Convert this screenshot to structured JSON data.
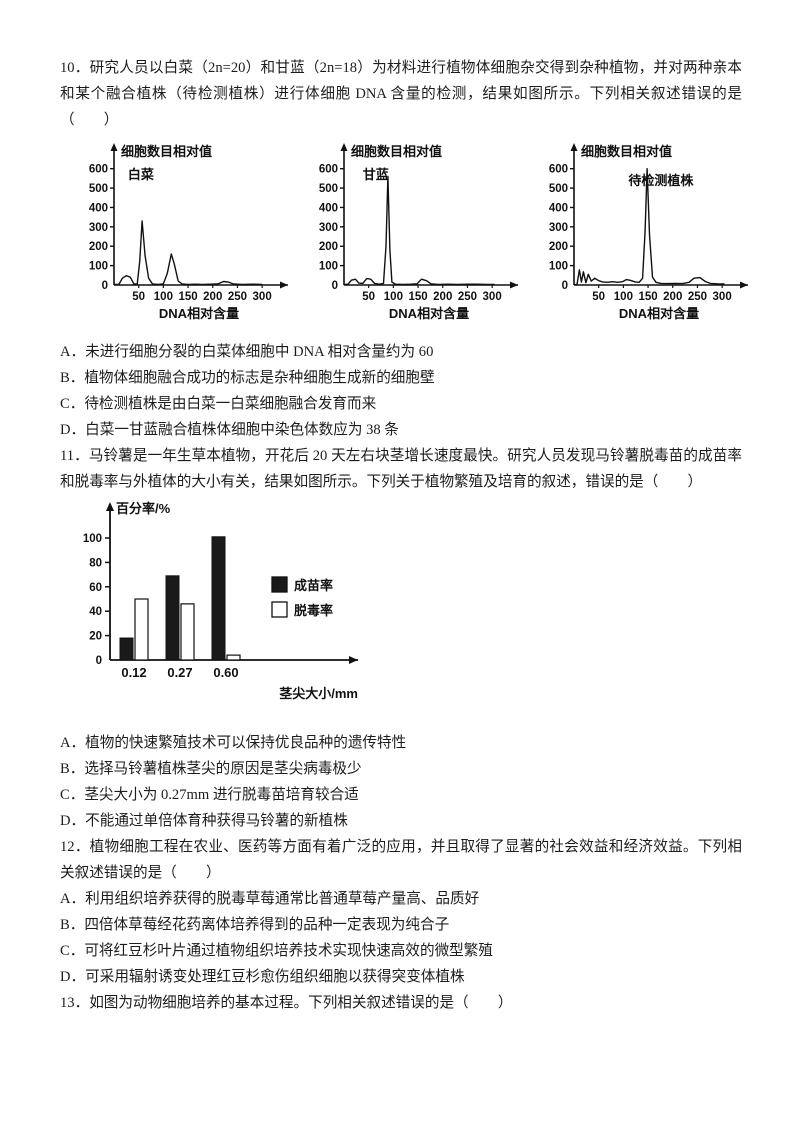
{
  "questions": [
    {
      "number": "10．",
      "stem": "研究人员以白菜（2n=20）和甘蓝（2n=18）为材料进行植物体细胞杂交得到杂种植物，并对两种亲本和某个融合植株（待检测植株）进行体细胞 DNA 含量的检测，结果如图所示。下列相关叙述错误的是（　　）",
      "options": [
        "A．未进行细胞分裂的白菜体细胞中 DNA 相对含量约为 60",
        "B．植物体细胞融合成功的标志是杂种细胞生成新的细胞壁",
        "C．待检测植株是由白菜一白菜细胞融合发育而来",
        "D．白菜一甘蓝融合植株体细胞中染色体数应为 38 条"
      ]
    },
    {
      "number": "11．",
      "stem": "马铃薯是一年生草本植物，开花后 20 天左右块茎增长速度最快。研究人员发现马铃薯脱毒苗的成苗率和脱毒率与外植体的大小有关，结果如图所示。下列关于植物繁殖及培育的叙述，错误的是（　　）",
      "options": [
        "A．植物的快速繁殖技术可以保持优良品种的遗传特性",
        "B．选择马铃薯植株茎尖的原因是茎尖病毒极少",
        "C．茎尖大小为 0.27mm 进行脱毒苗培育较合适",
        "D．不能通过单倍体育种获得马铃薯的新植株"
      ]
    },
    {
      "number": "12．",
      "stem": "植物细胞工程在农业、医药等方面有着广泛的应用，并且取得了显著的社会效益和经济效益。下列相关叙述错误的是（　　）",
      "options": [
        "A．利用组织培养获得的脱毒草莓通常比普通草莓产量高、品质好",
        "B．四倍体草莓经花药离体培养得到的品种一定表现为纯合子",
        "C．可将红豆杉叶片通过植物组织培养技术实现快速高效的微型繁殖",
        "D．可采用辐射诱变处理红豆杉愈伤组织细胞以获得突变体植株"
      ]
    },
    {
      "number": "13．",
      "stem": "如图为动物细胞培养的基本过程。下列相关叙述错误的是（　　）"
    }
  ],
  "chart_data": [
    {
      "type": "line",
      "title": "白菜",
      "ylabel": "细胞数目相对值",
      "xlabel": "DNA相对含量",
      "xlim": [
        0,
        320
      ],
      "ylim": [
        0,
        650
      ],
      "xticks": [
        50,
        100,
        150,
        200,
        250,
        300
      ],
      "yticks": [
        100,
        200,
        300,
        400,
        500,
        600
      ],
      "origin_label": "0",
      "grid": false,
      "peaks_note": "main peak at DNA~60 height ~330, second peak at ~118 height ~160, small bump ~25 height ~45, tiny bump ~225",
      "label_x": 28,
      "label_y": 40,
      "points": [
        [
          0,
          3
        ],
        [
          10,
          3
        ],
        [
          17,
          35
        ],
        [
          25,
          48
        ],
        [
          33,
          40
        ],
        [
          40,
          6
        ],
        [
          47,
          4
        ],
        [
          52,
          120
        ],
        [
          57,
          330
        ],
        [
          63,
          150
        ],
        [
          70,
          35
        ],
        [
          78,
          5
        ],
        [
          90,
          3
        ],
        [
          100,
          6
        ],
        [
          108,
          60
        ],
        [
          116,
          160
        ],
        [
          122,
          110
        ],
        [
          130,
          20
        ],
        [
          138,
          5
        ],
        [
          150,
          3
        ],
        [
          165,
          4
        ],
        [
          180,
          3
        ],
        [
          195,
          4
        ],
        [
          210,
          5
        ],
        [
          222,
          18
        ],
        [
          232,
          15
        ],
        [
          242,
          5
        ],
        [
          260,
          3
        ],
        [
          280,
          4
        ],
        [
          300,
          3
        ]
      ]
    },
    {
      "type": "line",
      "title": "甘蓝",
      "ylabel": "细胞数目相对值",
      "xlabel": "DNA相对含量",
      "xlim": [
        0,
        320
      ],
      "ylim": [
        0,
        650
      ],
      "xticks": [
        50,
        100,
        150,
        200,
        250,
        300
      ],
      "yticks": [
        100,
        200,
        300,
        400,
        500,
        600
      ],
      "origin_label": "0",
      "grid": false,
      "peaks_note": "sharp main peak at DNA~90 height ~560, small bumps at ~20, ~50 and ~160",
      "label_x": 38,
      "label_y": 40,
      "points": [
        [
          0,
          3
        ],
        [
          8,
          4
        ],
        [
          15,
          25
        ],
        [
          23,
          30
        ],
        [
          30,
          10
        ],
        [
          38,
          8
        ],
        [
          46,
          33
        ],
        [
          54,
          30
        ],
        [
          62,
          8
        ],
        [
          72,
          4
        ],
        [
          80,
          8
        ],
        [
          85,
          200
        ],
        [
          89,
          560
        ],
        [
          93,
          180
        ],
        [
          97,
          15
        ],
        [
          105,
          4
        ],
        [
          120,
          3
        ],
        [
          135,
          4
        ],
        [
          148,
          6
        ],
        [
          157,
          30
        ],
        [
          167,
          22
        ],
        [
          176,
          6
        ],
        [
          190,
          3
        ],
        [
          210,
          4
        ],
        [
          230,
          3
        ],
        [
          250,
          4
        ],
        [
          270,
          4
        ],
        [
          290,
          3
        ],
        [
          305,
          3
        ]
      ]
    },
    {
      "type": "line",
      "title": "待检测植株",
      "ylabel": "细胞数目相对值",
      "xlabel": "DNA相对含量",
      "xlim": [
        0,
        320
      ],
      "ylim": [
        0,
        650
      ],
      "xticks": [
        50,
        100,
        150,
        200,
        250,
        300
      ],
      "yticks": [
        100,
        200,
        300,
        400,
        500,
        600
      ],
      "origin_label": "0",
      "grid": false,
      "peaks_note": "sharp main peak at DNA~148 height ~600, jagged small spikes at ~10-45 height 50-80, low bump at ~250 height ~38",
      "label_x": 110,
      "label_y": 46,
      "points": [
        [
          0,
          2
        ],
        [
          6,
          3
        ],
        [
          11,
          78
        ],
        [
          15,
          15
        ],
        [
          19,
          68
        ],
        [
          24,
          12
        ],
        [
          29,
          55
        ],
        [
          35,
          20
        ],
        [
          42,
          35
        ],
        [
          50,
          22
        ],
        [
          58,
          16
        ],
        [
          68,
          14
        ],
        [
          78,
          17
        ],
        [
          88,
          14
        ],
        [
          98,
          17
        ],
        [
          106,
          28
        ],
        [
          114,
          24
        ],
        [
          124,
          16
        ],
        [
          132,
          14
        ],
        [
          139,
          35
        ],
        [
          144,
          280
        ],
        [
          148,
          600
        ],
        [
          153,
          260
        ],
        [
          159,
          40
        ],
        [
          166,
          14
        ],
        [
          176,
          8
        ],
        [
          190,
          7
        ],
        [
          205,
          8
        ],
        [
          220,
          7
        ],
        [
          233,
          14
        ],
        [
          243,
          35
        ],
        [
          255,
          38
        ],
        [
          266,
          18
        ],
        [
          276,
          8
        ],
        [
          290,
          6
        ],
        [
          305,
          5
        ]
      ]
    },
    {
      "type": "bar",
      "title": "",
      "ylabel": "百分率/%",
      "xlabel": "茎尖大小/mm",
      "categories": [
        "0.12",
        "0.27",
        "0.60"
      ],
      "series": [
        {
          "name": "成苗率",
          "fill": "#1a1a1a",
          "values": [
            18,
            69,
            101
          ]
        },
        {
          "name": "脱毒率",
          "fill": "#ffffff",
          "values": [
            50,
            46,
            4
          ]
        }
      ],
      "yticks": [
        0,
        20,
        40,
        60,
        80,
        100
      ],
      "ylim": [
        0,
        110
      ],
      "grid": false,
      "legend_position": "right"
    }
  ]
}
